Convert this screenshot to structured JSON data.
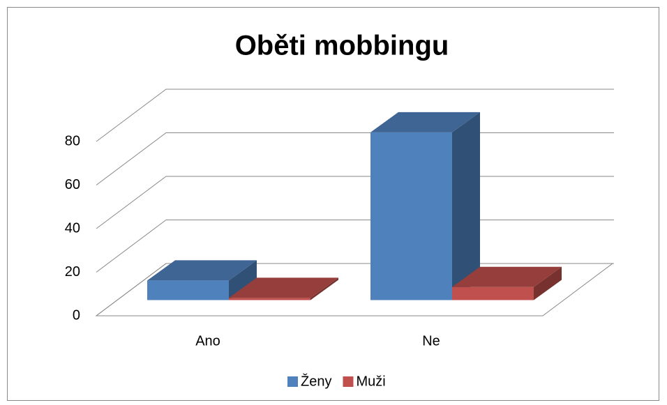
{
  "chart_data": {
    "type": "bar3d",
    "title": "Oběti mobbingu",
    "categories": [
      "Ano",
      "Ne"
    ],
    "series": [
      {
        "name": "Ženy",
        "color": "#4f81bd",
        "values": [
          9,
          77
        ]
      },
      {
        "name": "Muži",
        "color": "#c0504d",
        "values": [
          1,
          6
        ]
      }
    ],
    "ylim": [
      0,
      80
    ],
    "yticks": [
      0,
      20,
      40,
      60,
      80
    ],
    "grid": true,
    "legend": "bottom"
  }
}
